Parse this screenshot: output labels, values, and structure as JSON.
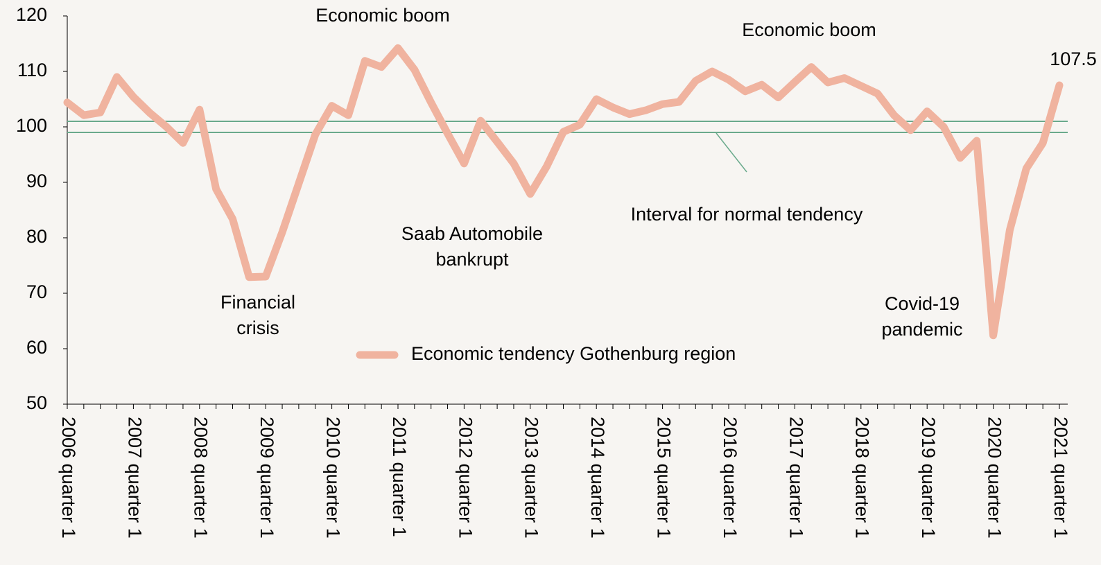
{
  "chart_data": {
    "type": "line",
    "categories": [
      "2006 quarter 1",
      null,
      null,
      null,
      "2007 quarter 1",
      null,
      null,
      null,
      "2008 quarter 1",
      null,
      null,
      null,
      "2009 quarter 1",
      null,
      null,
      null,
      "2010 quarter 1",
      null,
      null,
      null,
      "2011 quarter 1",
      null,
      null,
      null,
      "2012 quarter 1",
      null,
      null,
      null,
      "2013 quarter 1",
      null,
      null,
      null,
      "2014 quarter 1",
      null,
      null,
      null,
      "2015 quarter 1",
      null,
      null,
      null,
      "2016 quarter 1",
      null,
      null,
      null,
      "2017 quarter 1",
      null,
      null,
      null,
      "2018 quarter 1",
      null,
      null,
      null,
      "2019 quarter 1",
      null,
      null,
      null,
      "2020 quarter 1",
      null,
      null,
      null,
      "2021 quarter 1"
    ],
    "series": [
      {
        "name": "Economic tendency Gothenburg region",
        "color": "#f0b39f",
        "values": [
          104.4,
          102.1,
          102.6,
          109,
          105.4,
          102.5,
          100,
          97.1,
          103.1,
          88.8,
          83.4,
          72.9,
          73,
          81,
          89.8,
          98.6,
          103.8,
          102.1,
          111.9,
          110.8,
          114.2,
          110.3,
          104.4,
          98.8,
          93.4,
          101.1,
          97.3,
          93.4,
          87.9,
          92.9,
          99.1,
          100.4,
          105,
          103.5,
          102.3,
          103,
          104.1,
          104.5,
          108.3,
          110,
          108.5,
          106.4,
          107.6,
          105.3,
          108.1,
          110.8,
          108,
          108.8,
          107.4,
          106,
          102.1,
          99.4,
          102.8,
          100,
          94.4,
          97.5,
          62.4,
          81.4,
          92.5,
          97.1,
          107.5
        ]
      }
    ],
    "ylim": [
      50,
      120
    ],
    "yticks": [
      50,
      60,
      70,
      80,
      90,
      100,
      110,
      120
    ],
    "grid": false,
    "reference_lines": {
      "values": [
        101,
        99
      ],
      "color": "#6aaa8c",
      "label": "Interval for normal tendency"
    },
    "annotations": [
      {
        "lines": [
          "Economic boom"
        ]
      },
      {
        "lines": [
          "Financial",
          "crisis"
        ]
      },
      {
        "lines": [
          "Saab Automobile",
          "bankrupt"
        ]
      },
      {
        "lines": [
          "Economic boom"
        ]
      },
      {
        "lines": [
          "Covid-19",
          "pandemic"
        ]
      }
    ],
    "legend": "bottom"
  }
}
